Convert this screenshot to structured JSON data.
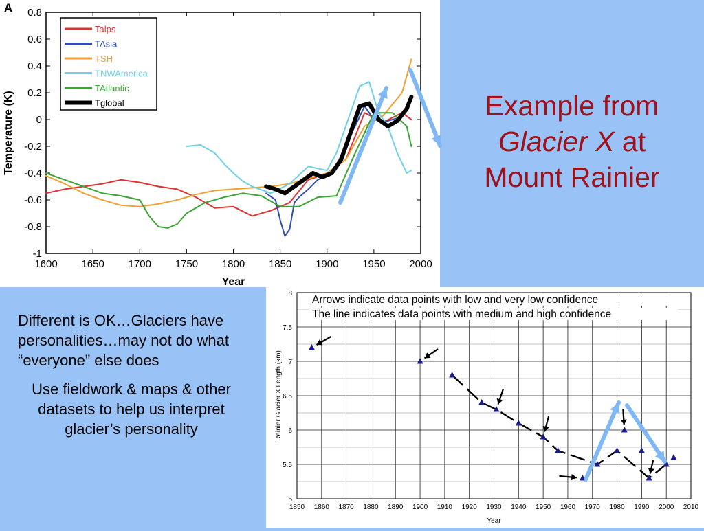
{
  "slide": {
    "title_line1": "Example from",
    "title_italic": "Glacier X",
    "title_after_italic": " at",
    "title_line3": "Mount Rainier",
    "paragraph1": "Different is OK…Glaciers have personalities…may not do what “everyone” else does",
    "paragraph2": "Use fieldwork & maps & other datasets to help us interpret glacier’s personality",
    "title_color": "#a0111a",
    "background_color": "#99c3f7",
    "highlight_arrow_color": "#7fb8f5"
  },
  "chart_data": [
    {
      "type": "line",
      "panel_label": "A",
      "xlabel": "Year",
      "ylabel": "Temperature (K)",
      "xlim": [
        1600,
        2000
      ],
      "ylim": [
        -1,
        0.8
      ],
      "xticks": [
        1600,
        1650,
        1700,
        1750,
        1800,
        1850,
        1900,
        1950,
        2000
      ],
      "yticks": [
        -1,
        -0.8,
        -0.6,
        -0.4,
        -0.2,
        0,
        0.2,
        0.4,
        0.6,
        0.8
      ],
      "grid": false,
      "legend": "top-left",
      "series": [
        {
          "name": "Talps",
          "color": "#dd3333",
          "width": 2,
          "x": [
            1600,
            1620,
            1640,
            1660,
            1680,
            1700,
            1720,
            1740,
            1760,
            1780,
            1800,
            1820,
            1840,
            1860,
            1880,
            1900,
            1920,
            1940,
            1960,
            1980,
            1990
          ],
          "y": [
            -0.55,
            -0.52,
            -0.5,
            -0.48,
            -0.45,
            -0.47,
            -0.5,
            -0.52,
            -0.58,
            -0.66,
            -0.65,
            -0.72,
            -0.68,
            -0.62,
            -0.45,
            -0.4,
            -0.3,
            0.05,
            -0.02,
            0.05,
            0.0
          ]
        },
        {
          "name": "TAsia",
          "color": "#3050b0",
          "width": 2,
          "x": [
            1835,
            1845,
            1850,
            1855,
            1860,
            1865,
            1870,
            1880,
            1890,
            1900,
            1910,
            1920,
            1930,
            1940,
            1950,
            1960,
            1970,
            1980
          ],
          "y": [
            -0.55,
            -0.6,
            -0.75,
            -0.87,
            -0.82,
            -0.62,
            -0.58,
            -0.52,
            -0.45,
            -0.42,
            -0.35,
            -0.18,
            -0.05,
            0.1,
            0.0,
            -0.02,
            0.0,
            0.02
          ]
        },
        {
          "name": "TSH",
          "color": "#f0a030",
          "width": 2,
          "x": [
            1600,
            1620,
            1640,
            1660,
            1680,
            1700,
            1720,
            1740,
            1760,
            1780,
            1800,
            1820,
            1840,
            1860,
            1880,
            1900,
            1920,
            1940,
            1960,
            1980,
            1990
          ],
          "y": [
            -0.42,
            -0.48,
            -0.55,
            -0.6,
            -0.64,
            -0.65,
            -0.63,
            -0.6,
            -0.56,
            -0.53,
            -0.52,
            -0.51,
            -0.5,
            -0.48,
            -0.44,
            -0.4,
            -0.3,
            -0.05,
            0.03,
            0.2,
            0.45
          ]
        },
        {
          "name": "TNWAmerica",
          "color": "#6fd0e8",
          "width": 2,
          "x": [
            1750,
            1765,
            1780,
            1790,
            1800,
            1810,
            1820,
            1840,
            1860,
            1880,
            1900,
            1910,
            1920,
            1935,
            1945,
            1955,
            1965,
            1975,
            1985,
            1990
          ],
          "y": [
            -0.2,
            -0.19,
            -0.25,
            -0.33,
            -0.4,
            -0.46,
            -0.5,
            -0.55,
            -0.48,
            -0.35,
            -0.38,
            -0.25,
            -0.05,
            0.25,
            0.28,
            0.05,
            -0.05,
            -0.25,
            -0.4,
            -0.38
          ]
        },
        {
          "name": "TAtlantic",
          "color": "#3aa535",
          "width": 2,
          "x": [
            1600,
            1620,
            1640,
            1660,
            1680,
            1700,
            1710,
            1720,
            1730,
            1740,
            1750,
            1770,
            1790,
            1810,
            1830,
            1850,
            1870,
            1890,
            1910,
            1930,
            1950,
            1970,
            1985,
            1990
          ],
          "y": [
            -0.4,
            -0.45,
            -0.5,
            -0.55,
            -0.57,
            -0.6,
            -0.72,
            -0.8,
            -0.81,
            -0.78,
            -0.7,
            -0.62,
            -0.58,
            -0.55,
            -0.57,
            -0.65,
            -0.65,
            -0.58,
            -0.57,
            -0.25,
            0.05,
            0.05,
            -0.05,
            -0.2
          ]
        },
        {
          "name": "Tglobal",
          "color": "#000000",
          "width": 6,
          "x": [
            1835,
            1845,
            1855,
            1865,
            1875,
            1885,
            1895,
            1905,
            1915,
            1925,
            1935,
            1945,
            1955,
            1965,
            1975,
            1985,
            1990
          ],
          "y": [
            -0.5,
            -0.52,
            -0.55,
            -0.5,
            -0.45,
            -0.4,
            -0.43,
            -0.4,
            -0.3,
            -0.1,
            0.1,
            0.12,
            0.0,
            -0.05,
            -0.01,
            0.08,
            0.17
          ]
        }
      ]
    },
    {
      "type": "scatter",
      "xlabel": "Year",
      "ylabel": "Rainier Glacier X Length (km)",
      "xlim": [
        1850,
        2010
      ],
      "ylim": [
        5,
        8
      ],
      "xticks": [
        1850,
        1860,
        1870,
        1880,
        1890,
        1900,
        1910,
        1920,
        1930,
        1940,
        1950,
        1960,
        1970,
        1980,
        1990,
        2000,
        2010
      ],
      "yticks": [
        5,
        5.5,
        6,
        6.5,
        7,
        7.5,
        8
      ],
      "grid": true,
      "annotations": [
        "Arrows indicate data points with low and very low confidence",
        "The line indicates data points with medium and high confidence"
      ],
      "points": [
        {
          "x": 1856,
          "y": 7.2
        },
        {
          "x": 1900,
          "y": 7.0
        },
        {
          "x": 1913,
          "y": 6.8
        },
        {
          "x": 1925,
          "y": 6.4
        },
        {
          "x": 1931,
          "y": 6.3
        },
        {
          "x": 1940,
          "y": 6.1
        },
        {
          "x": 1950,
          "y": 5.9
        },
        {
          "x": 1956,
          "y": 5.7
        },
        {
          "x": 1966,
          "y": 5.3
        },
        {
          "x": 1972,
          "y": 5.5
        },
        {
          "x": 1980,
          "y": 5.7
        },
        {
          "x": 1983,
          "y": 6.0
        },
        {
          "x": 1990,
          "y": 5.7
        },
        {
          "x": 1993,
          "y": 5.3
        },
        {
          "x": 2000,
          "y": 5.5
        },
        {
          "x": 2003,
          "y": 5.6
        }
      ],
      "line_segments": [
        [
          [
            1913,
            6.8
          ],
          [
            1925,
            6.4
          ],
          [
            1931,
            6.3
          ],
          [
            1940,
            6.1
          ],
          [
            1950,
            5.9
          ],
          [
            1956,
            5.7
          ],
          [
            1972,
            5.5
          ],
          [
            1980,
            5.7
          ],
          [
            1993,
            5.3
          ],
          [
            2000,
            5.5
          ],
          [
            2003,
            5.6
          ]
        ]
      ],
      "low_confidence_points": [
        {
          "x": 1856,
          "y": 7.2
        },
        {
          "x": 1900,
          "y": 7.0
        },
        {
          "x": 1931,
          "y": 6.3
        },
        {
          "x": 1950,
          "y": 5.9
        },
        {
          "x": 1966,
          "y": 5.3
        },
        {
          "x": 1983,
          "y": 6.0
        },
        {
          "x": 1993,
          "y": 5.3
        }
      ]
    }
  ]
}
